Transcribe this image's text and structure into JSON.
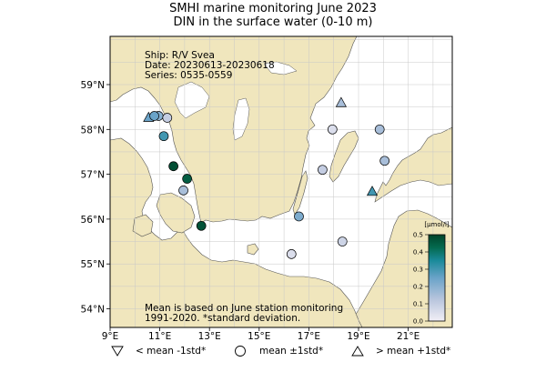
{
  "title": {
    "line1": "SMHI marine monitoring June 2023",
    "line2": "DIN in the surface water (0-10 m)"
  },
  "info": {
    "ship": "Ship: R/V Svea",
    "date": "Date: 20230613-20230618",
    "series": "Series: 0535-0559"
  },
  "note": {
    "line1": "Mean is based on June station monitoring",
    "line2": "1991-2020. *standard deviation."
  },
  "axes": {
    "lon_ticks": [
      "9°E",
      "11°E",
      "13°E",
      "15°E",
      "17°E",
      "19°E",
      "21°E"
    ],
    "lat_ticks": [
      "59°N",
      "58°N",
      "57°N",
      "56°N",
      "55°N",
      "54°N"
    ]
  },
  "colorbar": {
    "unit": "[µmol/l]",
    "ticks": [
      "0.5",
      "0.4",
      "0.3",
      "0.2",
      "0.1",
      "0.0"
    ],
    "colors": [
      "#f2eff6",
      "#b8c5dd",
      "#6aa3c8",
      "#1a8a9a",
      "#046a4f",
      "#00442a"
    ]
  },
  "legend": [
    {
      "symbol": "down-triangle",
      "label": "< mean -1std*"
    },
    {
      "symbol": "circle",
      "label": "mean ±1std*"
    },
    {
      "symbol": "up-triangle",
      "label": "> mean +1std*"
    }
  ],
  "colors": {
    "land": "#f0e6bd",
    "sea": "#ffffff",
    "lake": "#ffffff",
    "grid": "#c8c8c8"
  },
  "stations": [
    {
      "lon": 10.55,
      "lat": 58.27,
      "value": 0.25,
      "symbol": "up-triangle"
    },
    {
      "lon": 10.95,
      "lat": 58.3,
      "value": 0.2,
      "symbol": "circle"
    },
    {
      "lon": 10.78,
      "lat": 58.3,
      "value": 0.25,
      "symbol": "circle"
    },
    {
      "lon": 11.3,
      "lat": 58.26,
      "value": 0.1,
      "symbol": "circle"
    },
    {
      "lon": 11.16,
      "lat": 57.85,
      "value": 0.3,
      "symbol": "circle"
    },
    {
      "lon": 11.55,
      "lat": 57.18,
      "value": 0.48,
      "symbol": "circle"
    },
    {
      "lon": 12.1,
      "lat": 56.9,
      "value": 0.45,
      "symbol": "circle"
    },
    {
      "lon": 11.95,
      "lat": 56.64,
      "value": 0.15,
      "symbol": "circle"
    },
    {
      "lon": 12.67,
      "lat": 55.85,
      "value": 0.47,
      "symbol": "circle"
    },
    {
      "lon": 16.3,
      "lat": 55.22,
      "value": 0.05,
      "symbol": "circle"
    },
    {
      "lon": 16.6,
      "lat": 56.06,
      "value": 0.22,
      "symbol": "circle"
    },
    {
      "lon": 17.55,
      "lat": 57.1,
      "value": 0.1,
      "symbol": "circle"
    },
    {
      "lon": 17.95,
      "lat": 58.0,
      "value": 0.05,
      "symbol": "circle"
    },
    {
      "lon": 18.3,
      "lat": 58.6,
      "value": 0.15,
      "symbol": "up-triangle"
    },
    {
      "lon": 18.35,
      "lat": 55.5,
      "value": 0.08,
      "symbol": "circle"
    },
    {
      "lon": 19.55,
      "lat": 56.62,
      "value": 0.3,
      "symbol": "up-triangle"
    },
    {
      "lon": 19.85,
      "lat": 58.0,
      "value": 0.15,
      "symbol": "circle"
    },
    {
      "lon": 20.05,
      "lat": 57.3,
      "value": 0.15,
      "symbol": "circle"
    }
  ]
}
